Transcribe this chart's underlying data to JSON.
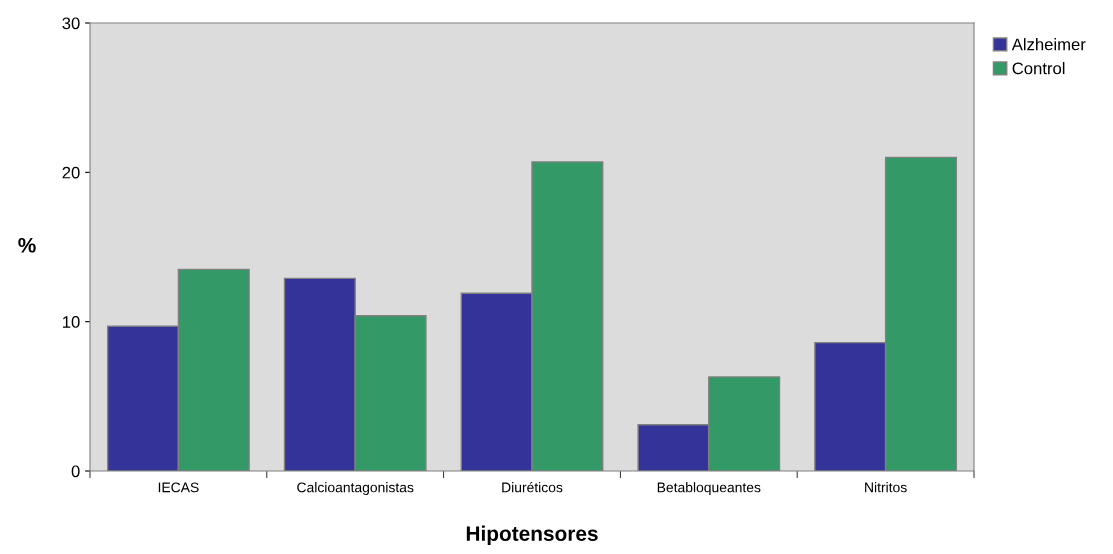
{
  "chart_data": {
    "type": "bar",
    "xlabel": "Hipotensores",
    "ylabel": "%",
    "categories": [
      "IECAS",
      "Calcioantagonistas",
      "Diuréticos",
      "Betabloqueantes",
      "Nitritos"
    ],
    "series": [
      {
        "name": "Alzheimer",
        "color": "#333399",
        "values": [
          9.7,
          12.9,
          11.9,
          3.1,
          8.6
        ]
      },
      {
        "name": "Control",
        "color": "#339966",
        "values": [
          13.5,
          10.4,
          20.7,
          6.3,
          21.0
        ]
      }
    ],
    "ylim": [
      0,
      30
    ],
    "yticks": [
      0,
      10,
      20,
      30
    ],
    "grid": false,
    "legend": "top right"
  }
}
